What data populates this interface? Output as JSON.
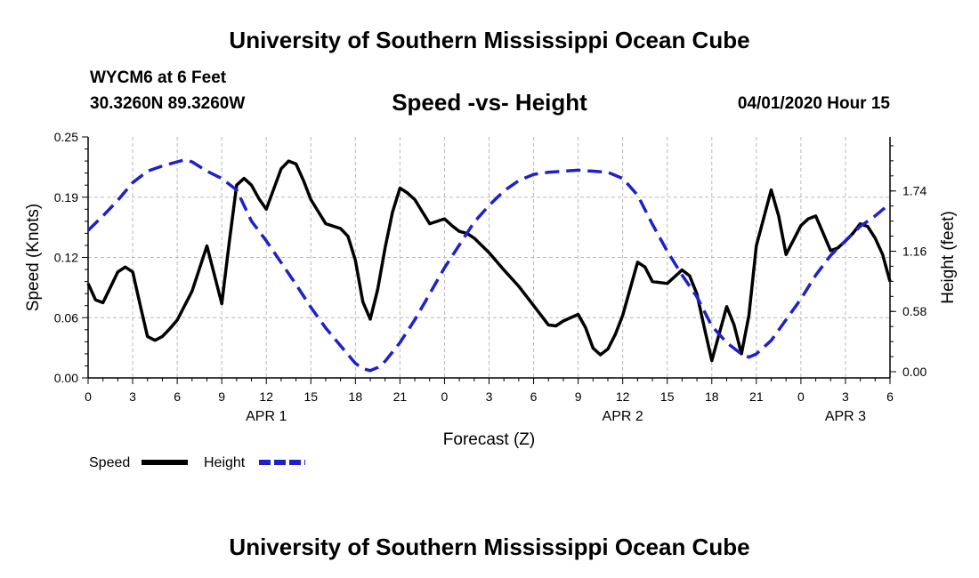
{
  "header": {
    "title": "University of Southern Mississippi Ocean Cube",
    "station": "WYCM6 at 6 Feet",
    "coords": "30.3260N 89.3260W",
    "datetime": "04/01/2020 Hour 15"
  },
  "footer": {
    "title": "University of Southern Mississippi Ocean Cube"
  },
  "colors": {
    "speed": "#000000",
    "height": "#1c22c8",
    "grid": "#b9b9b9"
  },
  "chart_data": {
    "type": "line",
    "title": "Speed -vs- Height",
    "xlabel": "Forecast (Z)",
    "ylabel_left": "Speed (Knots)",
    "ylabel_right": "Height (feet)",
    "x_range_hours": [
      0,
      54
    ],
    "x_ticks": [
      {
        "h": 0,
        "label": "0"
      },
      {
        "h": 3,
        "label": "3"
      },
      {
        "h": 6,
        "label": "6"
      },
      {
        "h": 9,
        "label": "9"
      },
      {
        "h": 12,
        "label": "12"
      },
      {
        "h": 15,
        "label": "15"
      },
      {
        "h": 18,
        "label": "18"
      },
      {
        "h": 21,
        "label": "21"
      },
      {
        "h": 24,
        "label": "0"
      },
      {
        "h": 27,
        "label": "3"
      },
      {
        "h": 30,
        "label": "6"
      },
      {
        "h": 33,
        "label": "9"
      },
      {
        "h": 36,
        "label": "12"
      },
      {
        "h": 39,
        "label": "15"
      },
      {
        "h": 42,
        "label": "18"
      },
      {
        "h": 45,
        "label": "21"
      },
      {
        "h": 48,
        "label": "0"
      },
      {
        "h": 51,
        "label": "3"
      },
      {
        "h": 54,
        "label": "6"
      }
    ],
    "day_labels": [
      {
        "h": 12,
        "label": "APR 1"
      },
      {
        "h": 36,
        "label": "APR 2"
      },
      {
        "h": 51,
        "label": "APR 3"
      }
    ],
    "ylim_left": [
      0,
      0.25
    ],
    "yticks_left": [
      {
        "v": 0.0,
        "label": "0.00"
      },
      {
        "v": 0.0625,
        "label": "0.06"
      },
      {
        "v": 0.125,
        "label": "0.12"
      },
      {
        "v": 0.1875,
        "label": "0.19"
      },
      {
        "v": 0.25,
        "label": "0.25"
      }
    ],
    "ylim_right": [
      -0.06,
      2.26
    ],
    "yticks_right": [
      {
        "v": 0.0,
        "label": "0.00"
      },
      {
        "v": 0.58,
        "label": "0.58"
      },
      {
        "v": 1.16,
        "label": "1.16"
      },
      {
        "v": 1.74,
        "label": "1.74"
      }
    ],
    "legend": [
      {
        "name": "Speed",
        "style": "solid"
      },
      {
        "name": "Height",
        "style": "dashed"
      }
    ],
    "series": [
      {
        "name": "Speed",
        "axis": "left",
        "x": [
          0,
          0.5,
          1,
          2,
          2.5,
          3,
          3.5,
          4,
          4.5,
          5,
          5.5,
          6,
          7,
          8,
          9,
          9.5,
          10,
          10.5,
          11,
          11.5,
          12,
          13,
          13.5,
          14,
          14.5,
          15,
          16,
          17,
          17.5,
          18,
          18.5,
          19,
          19.5,
          20,
          20.5,
          21,
          21.5,
          22,
          23,
          24,
          24.5,
          25,
          25.5,
          26,
          27,
          28,
          29,
          30,
          31,
          31.5,
          32,
          33,
          33.5,
          34,
          34.5,
          35,
          35.5,
          36,
          37,
          37.5,
          38,
          39,
          40,
          40.5,
          41,
          41.5,
          42,
          43,
          43.5,
          44,
          44.5,
          45,
          46,
          46.5,
          47,
          48,
          48.5,
          49,
          50,
          50.5,
          51,
          51.5,
          52,
          52.5,
          53,
          53.5,
          54
        ],
        "values": [
          0.098,
          0.081,
          0.078,
          0.11,
          0.115,
          0.11,
          0.076,
          0.043,
          0.039,
          0.043,
          0.051,
          0.06,
          0.09,
          0.137,
          0.077,
          0.14,
          0.2,
          0.207,
          0.2,
          0.186,
          0.175,
          0.217,
          0.225,
          0.222,
          0.205,
          0.185,
          0.16,
          0.155,
          0.147,
          0.122,
          0.079,
          0.061,
          0.092,
          0.135,
          0.172,
          0.197,
          0.192,
          0.185,
          0.16,
          0.165,
          0.158,
          0.152,
          0.15,
          0.145,
          0.13,
          0.112,
          0.095,
          0.075,
          0.055,
          0.054,
          0.059,
          0.066,
          0.052,
          0.031,
          0.024,
          0.03,
          0.045,
          0.065,
          0.12,
          0.115,
          0.1,
          0.098,
          0.112,
          0.106,
          0.087,
          0.052,
          0.018,
          0.074,
          0.055,
          0.025,
          0.065,
          0.137,
          0.195,
          0.168,
          0.128,
          0.158,
          0.165,
          0.168,
          0.132,
          0.135,
          0.142,
          0.15,
          0.16,
          0.157,
          0.145,
          0.128,
          0.1
        ]
      },
      {
        "name": "Height",
        "axis": "right",
        "x": [
          0,
          1,
          2,
          3,
          4,
          5,
          6,
          6.5,
          7,
          8,
          9,
          10,
          11,
          12,
          13,
          14,
          15,
          16,
          17,
          18,
          18.5,
          19,
          19.5,
          20,
          21,
          22,
          23,
          24,
          25,
          26,
          27,
          28,
          29,
          30,
          31,
          32,
          33,
          34,
          35,
          36,
          37,
          38,
          39,
          40,
          41,
          42,
          43,
          44,
          44.5,
          45,
          46,
          47,
          48,
          49,
          50,
          51,
          52,
          53,
          54
        ],
        "values": [
          1.36,
          1.5,
          1.65,
          1.82,
          1.93,
          1.98,
          2.02,
          2.04,
          2.02,
          1.93,
          1.86,
          1.75,
          1.45,
          1.26,
          1.05,
          0.84,
          0.62,
          0.42,
          0.25,
          0.08,
          0.03,
          0.01,
          0.04,
          0.1,
          0.28,
          0.5,
          0.75,
          1.0,
          1.22,
          1.44,
          1.6,
          1.74,
          1.84,
          1.9,
          1.92,
          1.93,
          1.94,
          1.93,
          1.92,
          1.86,
          1.7,
          1.42,
          1.16,
          0.93,
          0.72,
          0.44,
          0.28,
          0.17,
          0.14,
          0.17,
          0.3,
          0.5,
          0.7,
          0.93,
          1.12,
          1.26,
          1.4,
          1.5,
          1.62
        ]
      }
    ]
  }
}
